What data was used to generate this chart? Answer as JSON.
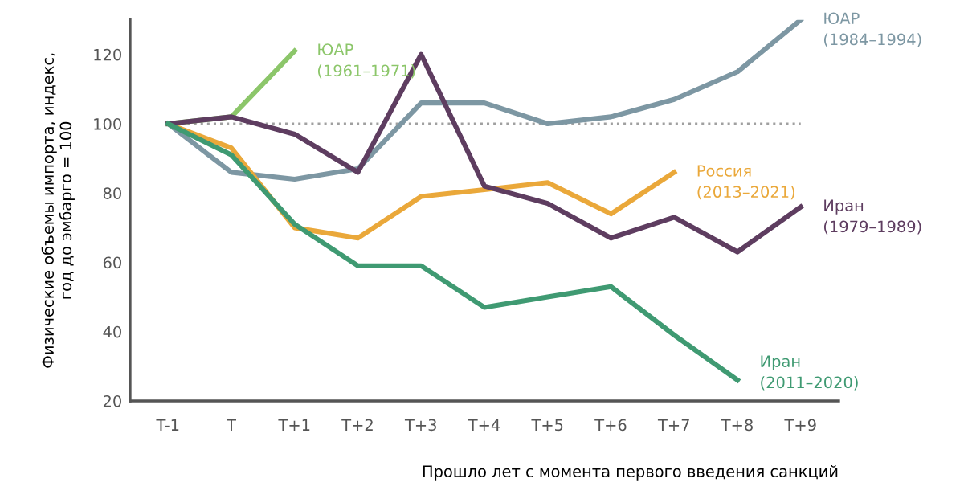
{
  "chart_data": {
    "type": "line",
    "xlabel": "Прошло лет с момента первого введения санкций",
    "ylabel": "Физические объемы импорта, индекс,\nгод до эмбарго = 100",
    "categories": [
      "T-1",
      "T",
      "T+1",
      "T+2",
      "T+3",
      "T+4",
      "T+5",
      "T+6",
      "T+7",
      "T+8",
      "T+9"
    ],
    "ylim": [
      20,
      130
    ],
    "yticks": [
      20,
      40,
      60,
      80,
      100,
      120
    ],
    "grid": false,
    "legend": false,
    "marker": "none",
    "line_style": "solid",
    "ref_lines": [
      {
        "axis": "y",
        "value": 100,
        "label": null,
        "color": "#a0a0a0",
        "line_style": "dotted"
      }
    ],
    "series": [
      {
        "name": "ЮАР\n(1961–1971)",
        "color": "#8cc66a",
        "values": [
          100,
          102,
          121,
          null,
          null,
          null,
          null,
          null,
          null,
          null,
          null
        ]
      },
      {
        "name": "ЮАР\n(1984–1994)",
        "color": "#7d97a3",
        "values": [
          100,
          86,
          84,
          87,
          106,
          106,
          100,
          102,
          107,
          115,
          130
        ]
      },
      {
        "name": "Россия\n(2013–2021)",
        "color": "#eaa83a",
        "values": [
          100,
          93,
          70,
          67,
          79,
          81,
          83,
          74,
          86,
          null,
          null
        ]
      },
      {
        "name": "Иран\n(1979–1989)",
        "color": "#5e3d60",
        "values": [
          100,
          102,
          97,
          86,
          120,
          82,
          77,
          67,
          73,
          63,
          76
        ]
      },
      {
        "name": "Иран\n(2011–2020)",
        "color": "#3f9a72",
        "values": [
          100,
          91,
          71,
          59,
          59,
          47,
          50,
          53,
          39,
          26,
          null
        ]
      }
    ]
  }
}
